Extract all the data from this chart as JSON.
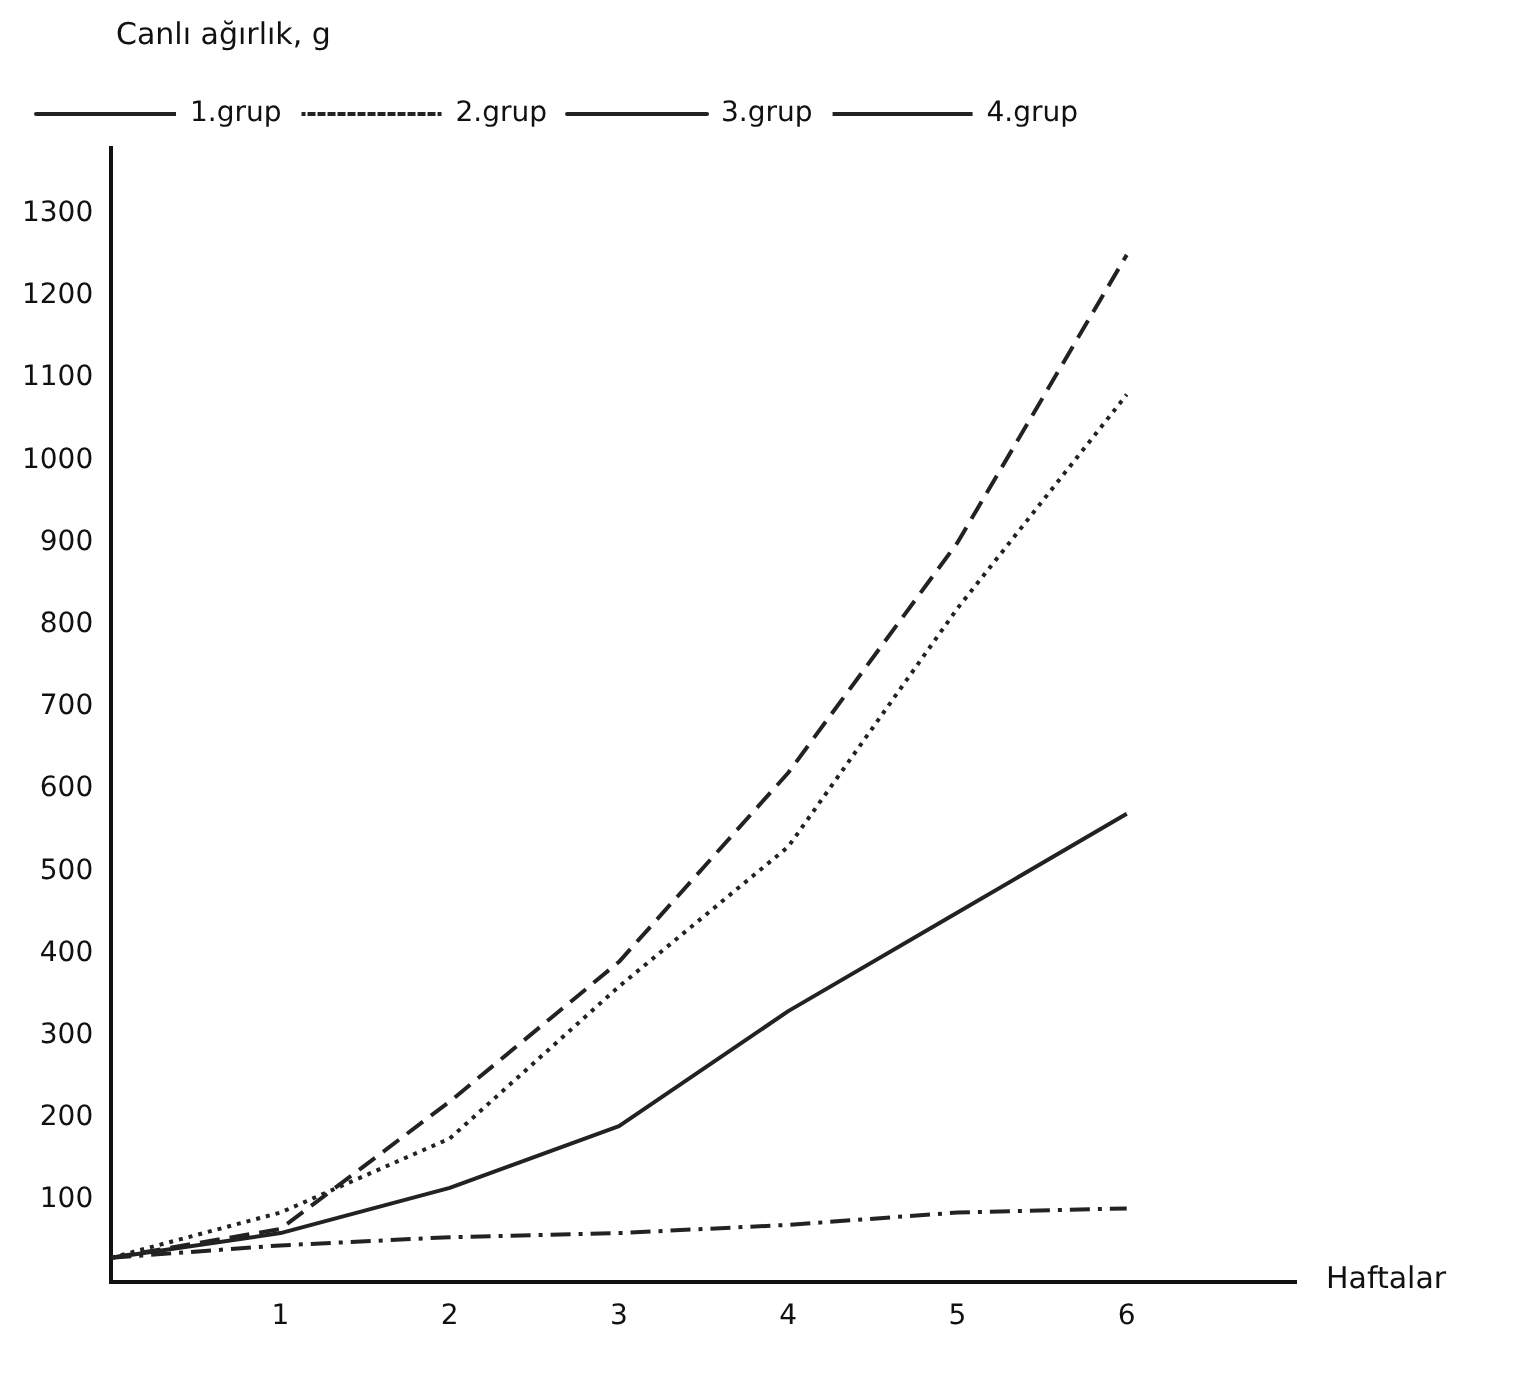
{
  "chart_data": {
    "type": "line",
    "ylabel": "Canlı ağırlık, g",
    "xlabel": "Haftalar",
    "x": [
      0,
      1,
      2,
      3,
      4,
      5,
      6
    ],
    "series": [
      {
        "name": "1.grup",
        "color": "#222222",
        "line_style": "dashed",
        "values": [
          30,
          65,
          220,
          390,
          620,
          900,
          1250
        ]
      },
      {
        "name": "2.grup",
        "color": "#222222",
        "line_style": "dotted",
        "values": [
          30,
          85,
          175,
          360,
          530,
          820,
          1080
        ]
      },
      {
        "name": "3.grup",
        "color": "#222222",
        "line_style": "solid",
        "values": [
          30,
          60,
          115,
          190,
          330,
          450,
          570
        ]
      },
      {
        "name": "4.grup",
        "color": "#222222",
        "line_style": "dashdot",
        "values": [
          30,
          45,
          55,
          60,
          70,
          85,
          90
        ]
      }
    ],
    "xlim": [
      0,
      7
    ],
    "xticks": [
      1,
      2,
      3,
      4,
      5,
      6
    ],
    "ylim": [
      0,
      1380
    ],
    "yticks": [
      100,
      200,
      300,
      400,
      500,
      600,
      700,
      800,
      900,
      1000,
      1100,
      1200,
      1300
    ],
    "grid": false,
    "legend": "top left",
    "marker": "none"
  }
}
